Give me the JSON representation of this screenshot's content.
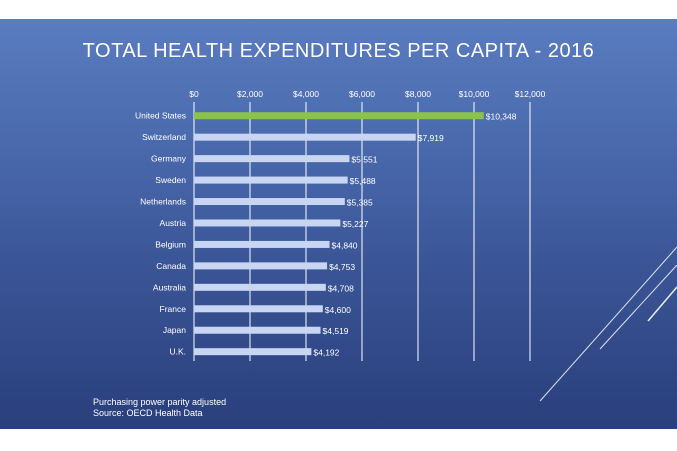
{
  "chart_data": {
    "type": "bar",
    "orientation": "horizontal",
    "title": "TOTAL HEALTH EXPENDITURES PER CAPITA - 2016",
    "categories": [
      "United States",
      "Switzerland",
      "Germany",
      "Sweden",
      "Netherlands",
      "Austria",
      "Belgium",
      "Canada",
      "Australia",
      "France",
      "Japan",
      "U.K."
    ],
    "values": [
      10348,
      7919,
      5551,
      5488,
      5385,
      5227,
      4840,
      4753,
      4708,
      4600,
      4519,
      4192
    ],
    "value_labels": [
      "$10,348",
      "$7,919",
      "$5,551",
      "$5,488",
      "$5,385",
      "$5,227",
      "$4,840",
      "$4,753",
      "$4,708",
      "$4,600",
      "$4,519",
      "$4,192"
    ],
    "xlim": [
      0,
      12000
    ],
    "x_ticks": [
      0,
      2000,
      4000,
      6000,
      8000,
      10000,
      12000
    ],
    "x_tick_labels": [
      "$0",
      "$2,000",
      "$4,000",
      "$6,000",
      "$8,000",
      "$10,000",
      "$12,000"
    ],
    "axis_position": "top",
    "grid": true,
    "legend": "none",
    "colors": {
      "highlight_bar": "#8bc34a",
      "bar": "#c9d6f3",
      "grid": "#ffffff",
      "text": "#ffffff"
    },
    "highlight_index": 0
  },
  "footnote": {
    "line1": "Purchasing power parity adjusted",
    "line2": "Source: OECD Health Data"
  }
}
